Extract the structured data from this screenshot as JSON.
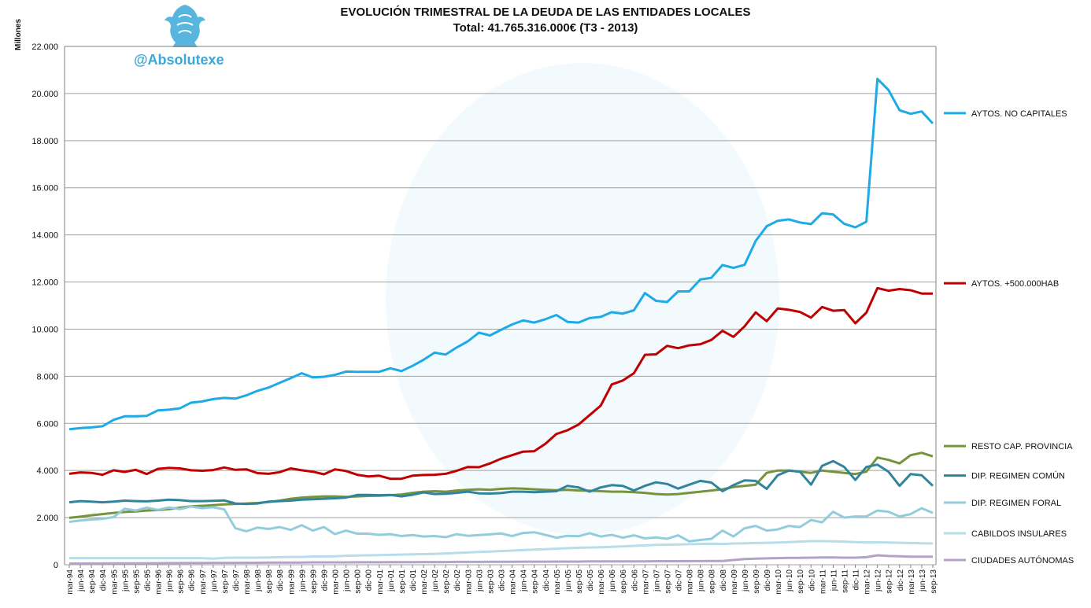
{
  "header": {
    "title": "EVOLUCIÓN TRIMESTRAL DE LA DEUDA DE LAS ENTIDADES LOCALES",
    "subtitle": "Total: 41.765.316.000€ (T3 - 2013)",
    "brand": "@Absolutexe"
  },
  "colors": {
    "background": "#ffffff",
    "grid": "#a0a0a0",
    "axis": "#808080"
  },
  "chart_data": {
    "type": "line",
    "ylabel": "Millones",
    "ylim": [
      0,
      22000
    ],
    "yticks": [
      0,
      2000,
      4000,
      6000,
      8000,
      10000,
      12000,
      14000,
      16000,
      18000,
      20000,
      22000
    ],
    "ytick_labels": [
      "0",
      "2.000",
      "4.000",
      "6.000",
      "8.000",
      "10.000",
      "12.000",
      "14.000",
      "16.000",
      "18.000",
      "20.000",
      "22.000"
    ],
    "grid": "horizontal",
    "legend_placement": "right",
    "x": [
      "mar-94",
      "jun-94",
      "sep-94",
      "dic-94",
      "mar-95",
      "jun-95",
      "sep-95",
      "dic-95",
      "mar-96",
      "jun-96",
      "sep-96",
      "dic-96",
      "mar-97",
      "jun-97",
      "sep-97",
      "dic-97",
      "mar-98",
      "jun-98",
      "sep-98",
      "dic-98",
      "mar-99",
      "jun-99",
      "sep-99",
      "dic-99",
      "mar-00",
      "jun-00",
      "sep-00",
      "dic-00",
      "mar-01",
      "jun-01",
      "sep-01",
      "dic-01",
      "mar-02",
      "jun-02",
      "sep-02",
      "dic-02",
      "mar-03",
      "jun-03",
      "sep-03",
      "dic-03",
      "mar-04",
      "jun-04",
      "sep-04",
      "dic-04",
      "mar-05",
      "jun-05",
      "sep-05",
      "dic-05",
      "mar-06",
      "jun-06",
      "sep-06",
      "dic-06",
      "mar-07",
      "jun-07",
      "sep-07",
      "dic-07",
      "mar-08",
      "jun-08",
      "sep-08",
      "dic-08",
      "mar-09",
      "jun-09",
      "sep-09",
      "dic-09",
      "mar-10",
      "jun-10",
      "sep-10",
      "dic-10",
      "mar-11",
      "jun-11",
      "sep-11",
      "dic-11",
      "mar-12",
      "jun-12",
      "sep-12",
      "dic-12",
      "mar-13",
      "jun-13",
      "sep-13"
    ],
    "series": [
      {
        "name": "AYTOS. NO CAPITALES",
        "color": "#1eaae7",
        "values": [
          5750,
          5800,
          5830,
          5880,
          6150,
          6300,
          6300,
          6320,
          6550,
          6580,
          6640,
          6880,
          6930,
          7030,
          7080,
          7050,
          7190,
          7380,
          7520,
          7720,
          7920,
          8130,
          7950,
          7980,
          8060,
          8200,
          8190,
          8190,
          8190,
          8340,
          8220,
          8440,
          8700,
          9000,
          8920,
          9220,
          9480,
          9850,
          9730,
          9970,
          10200,
          10370,
          10280,
          10420,
          10600,
          10310,
          10280,
          10470,
          10520,
          10720,
          10660,
          10800,
          11530,
          11200,
          11150,
          11600,
          11600,
          12110,
          12180,
          12720,
          12600,
          12730,
          13740,
          14370,
          14600,
          14660,
          14530,
          14460,
          14920,
          14870,
          14470,
          14320,
          14560,
          20620,
          20150,
          19290,
          19140,
          19240,
          18730
        ]
      },
      {
        "name": "AYTOS. +500.000HAB",
        "color": "#c00000",
        "values": [
          3860,
          3920,
          3900,
          3820,
          4010,
          3940,
          4030,
          3850,
          4070,
          4110,
          4090,
          4010,
          3990,
          4020,
          4130,
          4030,
          4050,
          3890,
          3860,
          3930,
          4090,
          4010,
          3950,
          3840,
          4050,
          3980,
          3820,
          3750,
          3780,
          3650,
          3650,
          3780,
          3810,
          3820,
          3860,
          3990,
          4150,
          4140,
          4300,
          4500,
          4650,
          4800,
          4820,
          5130,
          5550,
          5710,
          5950,
          6350,
          6750,
          7650,
          7820,
          8130,
          8910,
          8930,
          9290,
          9190,
          9310,
          9360,
          9540,
          9930,
          9670,
          10120,
          10710,
          10340,
          10880,
          10820,
          10730,
          10490,
          10940,
          10780,
          10810,
          10250,
          10700,
          11740,
          11630,
          11700,
          11650,
          11510,
          11510
        ]
      },
      {
        "name": "RESTO CAP. PROVINCIA",
        "color": "#77933c",
        "values": [
          1990,
          2040,
          2100,
          2150,
          2200,
          2240,
          2260,
          2300,
          2320,
          2360,
          2420,
          2480,
          2500,
          2530,
          2560,
          2580,
          2600,
          2620,
          2660,
          2720,
          2800,
          2850,
          2880,
          2900,
          2900,
          2880,
          2900,
          2920,
          2930,
          2950,
          2980,
          3050,
          3100,
          3120,
          3100,
          3150,
          3180,
          3200,
          3180,
          3220,
          3240,
          3230,
          3200,
          3180,
          3160,
          3180,
          3150,
          3140,
          3120,
          3100,
          3100,
          3080,
          3050,
          3000,
          2980,
          3000,
          3050,
          3100,
          3150,
          3200,
          3300,
          3350,
          3400,
          3900,
          4000,
          4000,
          3950,
          3900,
          4000,
          3950,
          3900,
          3850,
          3950,
          4550,
          4450,
          4300,
          4650,
          4750,
          4600
        ]
      },
      {
        "name": "DIP. REGIMEN  COMÚN",
        "color": "#31849b",
        "values": [
          2650,
          2700,
          2680,
          2650,
          2680,
          2720,
          2700,
          2690,
          2720,
          2760,
          2740,
          2700,
          2700,
          2710,
          2730,
          2600,
          2580,
          2600,
          2680,
          2700,
          2720,
          2760,
          2780,
          2800,
          2820,
          2850,
          2960,
          2960,
          2950,
          2960,
          2900,
          2970,
          3070,
          3000,
          3010,
          3050,
          3100,
          3030,
          3020,
          3040,
          3100,
          3100,
          3080,
          3100,
          3120,
          3350,
          3280,
          3100,
          3280,
          3380,
          3350,
          3150,
          3350,
          3500,
          3430,
          3230,
          3400,
          3560,
          3490,
          3120,
          3380,
          3580,
          3560,
          3220,
          3800,
          4000,
          3950,
          3400,
          4200,
          4400,
          4150,
          3600,
          4150,
          4250,
          3950,
          3350,
          3850,
          3800,
          3350
        ]
      },
      {
        "name": "DIP. REGIMEN  FORAL",
        "color": "#93cddd",
        "values": [
          1820,
          1880,
          1920,
          1950,
          2020,
          2380,
          2300,
          2420,
          2330,
          2430,
          2360,
          2470,
          2400,
          2440,
          2350,
          1550,
          1420,
          1580,
          1520,
          1600,
          1480,
          1680,
          1450,
          1600,
          1300,
          1450,
          1320,
          1320,
          1270,
          1300,
          1220,
          1260,
          1200,
          1220,
          1170,
          1300,
          1230,
          1260,
          1290,
          1330,
          1220,
          1350,
          1380,
          1270,
          1150,
          1230,
          1210,
          1340,
          1200,
          1270,
          1150,
          1250,
          1120,
          1160,
          1100,
          1250,
          990,
          1050,
          1100,
          1450,
          1200,
          1550,
          1650,
          1450,
          1500,
          1650,
          1600,
          1900,
          1800,
          2250,
          2000,
          2050,
          2050,
          2300,
          2250,
          2050,
          2150,
          2400,
          2200
        ]
      },
      {
        "name": "CABILDOS INSULARES",
        "color": "#b7dde8",
        "values": [
          280,
          280,
          280,
          280,
          280,
          280,
          280,
          280,
          280,
          280,
          280,
          280,
          280,
          260,
          290,
          300,
          300,
          300,
          310,
          320,
          330,
          330,
          350,
          350,
          360,
          380,
          390,
          400,
          410,
          420,
          430,
          440,
          450,
          460,
          480,
          500,
          520,
          540,
          560,
          580,
          600,
          620,
          640,
          660,
          680,
          700,
          720,
          730,
          740,
          760,
          780,
          800,
          820,
          840,
          850,
          860,
          870,
          880,
          890,
          880,
          900,
          910,
          920,
          930,
          940,
          960,
          980,
          1000,
          1000,
          990,
          980,
          960,
          950,
          950,
          940,
          930,
          920,
          910,
          900
        ]
      },
      {
        "name": "CIUDADES AUTÓNOMAS",
        "color": "#b3a2c7",
        "values": [
          50,
          50,
          55,
          55,
          60,
          60,
          60,
          65,
          65,
          70,
          70,
          75,
          75,
          80,
          80,
          80,
          85,
          85,
          90,
          90,
          95,
          95,
          100,
          100,
          100,
          100,
          105,
          105,
          105,
          110,
          110,
          110,
          115,
          115,
          115,
          120,
          120,
          120,
          125,
          125,
          125,
          130,
          130,
          130,
          135,
          135,
          135,
          140,
          140,
          140,
          145,
          145,
          145,
          150,
          150,
          150,
          155,
          155,
          160,
          160,
          200,
          240,
          260,
          270,
          280,
          290,
          295,
          300,
          310,
          310,
          300,
          300,
          320,
          400,
          370,
          360,
          340,
          340,
          340
        ]
      }
    ]
  }
}
